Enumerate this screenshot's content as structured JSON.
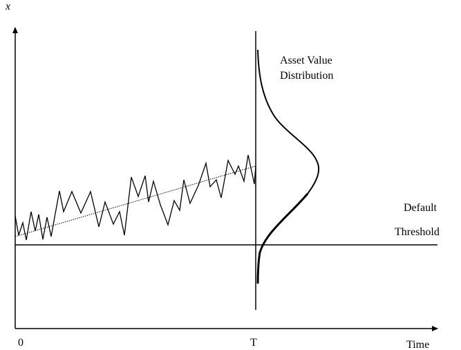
{
  "axes": {
    "y_label": "x",
    "x_label": "Time",
    "origin_label": "0",
    "horizon_label": "T"
  },
  "distribution": {
    "label_line1": "Asset Value",
    "label_line2": "Distribution"
  },
  "threshold": {
    "label_line1": "Default",
    "label_line2": "Threshold"
  },
  "colors": {
    "ink": "#000000",
    "background": "#ffffff"
  }
}
